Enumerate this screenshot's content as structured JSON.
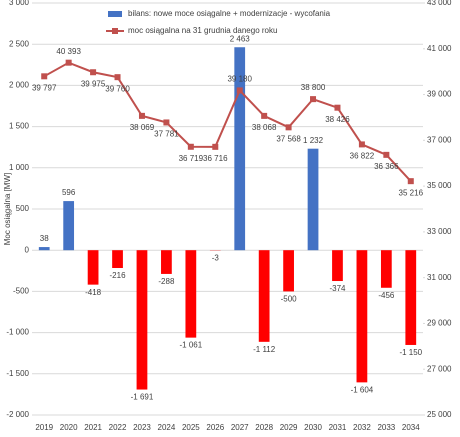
{
  "chart_data": {
    "type": "bar",
    "y_label": "Moc osiągalna [MW]",
    "categories": [
      "2019",
      "2020",
      "2021",
      "2022",
      "2023",
      "2024",
      "2025",
      "2026",
      "2027",
      "2028",
      "2029",
      "2030",
      "2031",
      "2032",
      "2033",
      "2034"
    ],
    "series": [
      {
        "name": "bilans: nowe moce osiągalne + modernizacje - wycofania",
        "type": "bar",
        "color": "#4472c4",
        "negative_color": "#ff0000",
        "values": [
          38,
          596,
          -418,
          -216,
          -1691,
          -288,
          -1061,
          -3,
          2463,
          -1112,
          -500,
          1232,
          -374,
          -1604,
          -456,
          -1150
        ],
        "value_labels": [
          "38",
          "596",
          "-418",
          "-216",
          "-1 691",
          "-288",
          "-1 061",
          "-3",
          "2 463",
          "-1 112",
          "-500",
          "1 232",
          "-374",
          "-1 604",
          "-456",
          "-1 150"
        ]
      },
      {
        "name": "moc osiągalna na 31 grudnia danego roku",
        "type": "line",
        "axis": "y2",
        "color": "#c0504d",
        "values": [
          39797,
          40393,
          39975,
          39760,
          38069,
          37781,
          36719,
          36716,
          39180,
          38068,
          37568,
          38800,
          38426,
          36822,
          36366,
          35216
        ],
        "value_labels": [
          "39 797",
          "40 393",
          "39 975",
          "39 760",
          "38 069",
          "37 781",
          "36 719",
          "36 716",
          "39 180",
          "38 068",
          "37 568",
          "38 800",
          "38 426",
          "36 822",
          "36 366",
          "35 216"
        ]
      }
    ],
    "ylim": [
      -2000,
      3000
    ],
    "yticks": [
      {
        "value": -2000,
        "label": "-2 000"
      },
      {
        "value": -1500,
        "label": "-1 500"
      },
      {
        "value": -1000,
        "label": "-1 000"
      },
      -500,
      0,
      500,
      {
        "value": 1000,
        "label": "1 000"
      },
      {
        "value": 1500,
        "label": "1 500"
      },
      {
        "value": 2000,
        "label": "2 000"
      },
      {
        "value": 2500,
        "label": "2 500"
      },
      {
        "value": 3000,
        "label": "3 000"
      }
    ],
    "y2lim": [
      25000,
      43000
    ],
    "y2ticks": [
      {
        "value": 25000,
        "label": "25 000"
      },
      {
        "value": 27000,
        "label": "27 000"
      },
      {
        "value": 29000,
        "label": "29 000"
      },
      {
        "value": 31000,
        "label": "31 000"
      },
      {
        "value": 33000,
        "label": "33 000"
      },
      {
        "value": 35000,
        "label": "35 000"
      },
      {
        "value": 37000,
        "label": "37 000"
      },
      {
        "value": 39000,
        "label": "39 000"
      },
      {
        "value": 41000,
        "label": "41 000"
      },
      {
        "value": 43000,
        "label": "43 000"
      }
    ],
    "grid": true
  }
}
